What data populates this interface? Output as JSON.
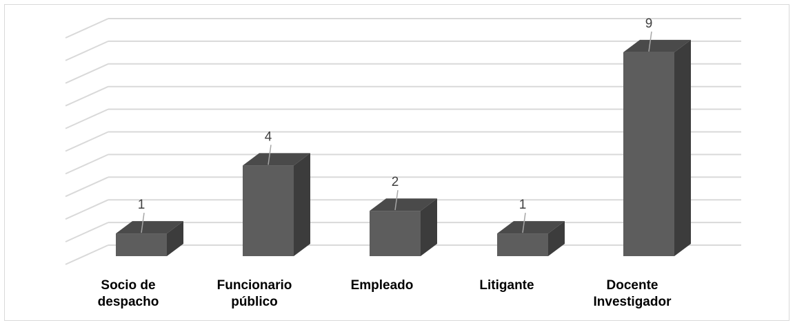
{
  "chart_data": {
    "type": "bar",
    "categories": [
      [
        "Socio de",
        "despacho"
      ],
      [
        "Funcionario",
        "público"
      ],
      [
        "Empleado"
      ],
      [
        "Litigante"
      ],
      [
        "Docente",
        "Investigador"
      ]
    ],
    "values": [
      1,
      4,
      2,
      1,
      9
    ],
    "ylim": [
      0,
      10
    ],
    "grid": true,
    "legend": "none",
    "colors": {
      "bar_front": "#5d5d5d",
      "bar_side": "#3c3c3c",
      "bar_top": "#4a4a4a",
      "grid": "#d9d9d9",
      "label_line": "#a6a6a6"
    }
  }
}
